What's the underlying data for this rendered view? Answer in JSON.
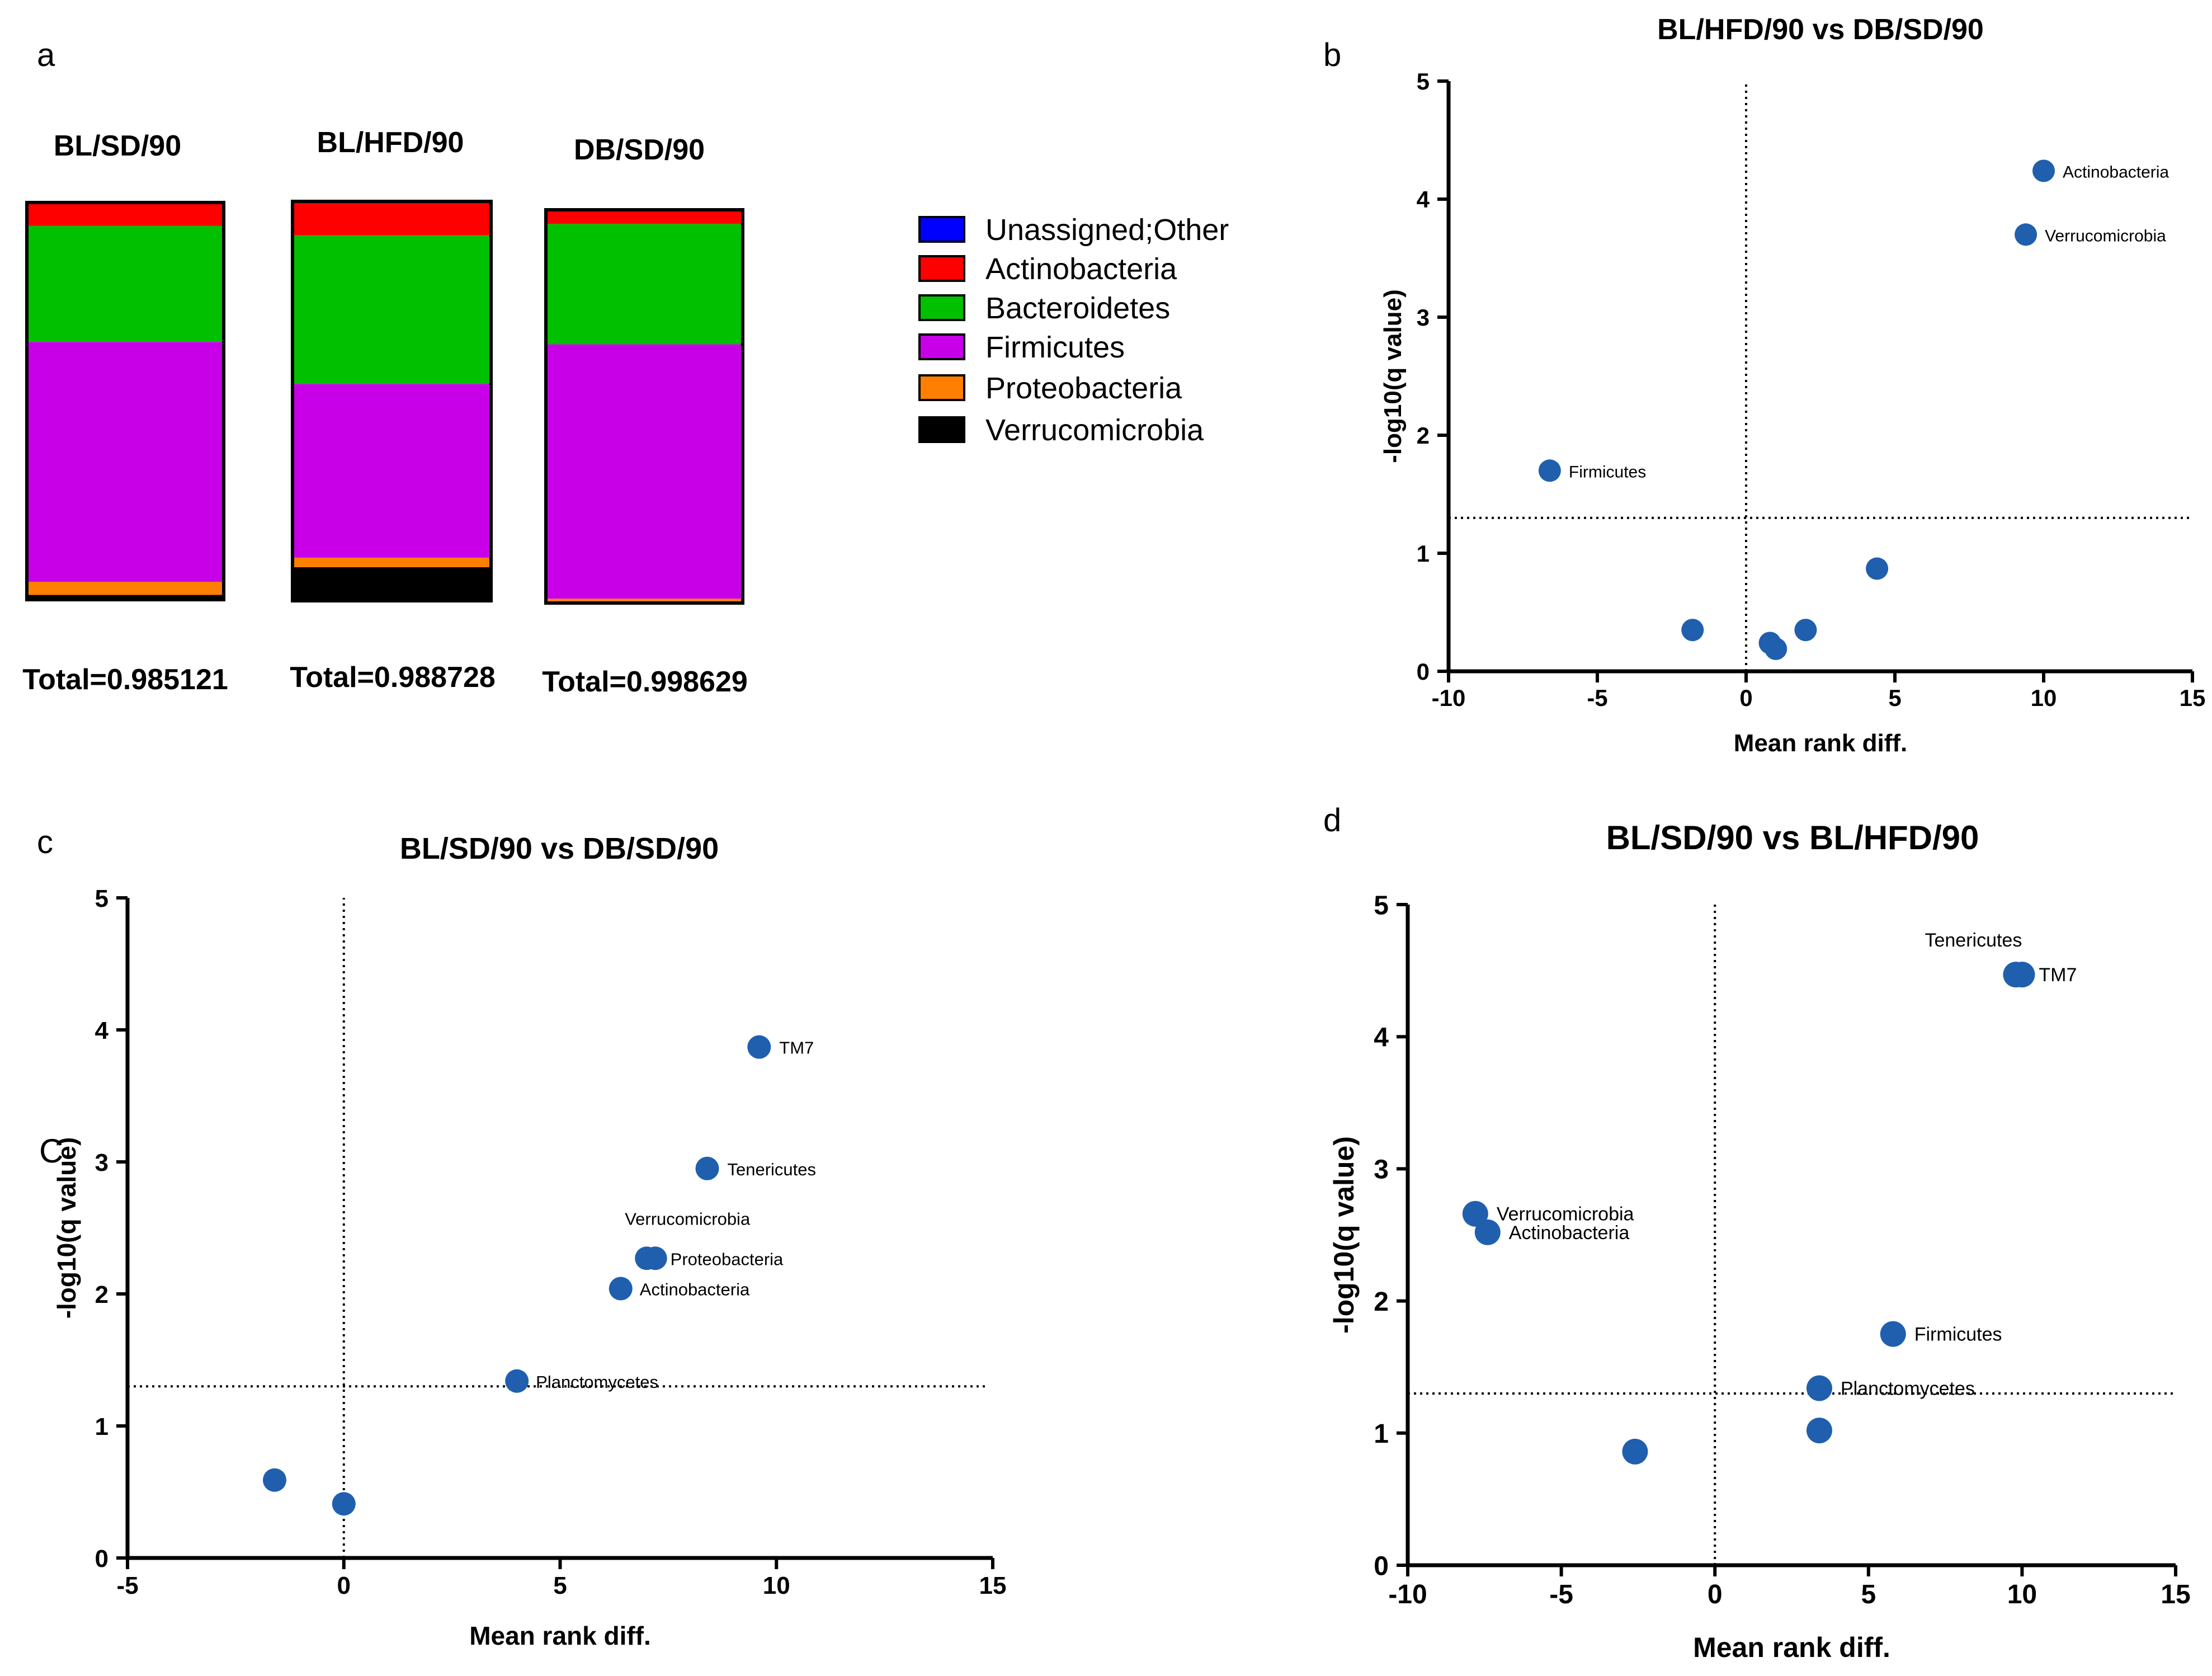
{
  "panel_letters": {
    "a": "a",
    "b": "b",
    "c": "c",
    "d": "d",
    "stray": "C"
  },
  "legend": [
    {
      "label": "Unassigned;Other",
      "color": "#0000ff"
    },
    {
      "label": "Actinobacteria",
      "color": "#ff0000"
    },
    {
      "label": "Bacteroidetes",
      "color": "#00c000"
    },
    {
      "label": "Firmicutes",
      "color": "#c800e8"
    },
    {
      "label": "Proteobacteria",
      "color": "#ff8000"
    },
    {
      "label": "Verrucomicrobia",
      "color": "#000000"
    }
  ],
  "chart_data": [
    {
      "type": "bar",
      "stacked": true,
      "normalized": true,
      "categories": [
        "BL/SD/90",
        "BL/HFD/90",
        "DB/SD/90"
      ],
      "totals": [
        "Total=0.985121",
        "Total=0.988728",
        "Total=0.998629"
      ],
      "stack_order": "bottom-to-top",
      "series": [
        {
          "name": "Verrucomicrobia",
          "color": "#000000",
          "values": [
            0.012,
            0.084,
            0.002
          ]
        },
        {
          "name": "Proteobacteria",
          "color": "#ff8000",
          "values": [
            0.033,
            0.024,
            0.009
          ]
        },
        {
          "name": "Firmicutes",
          "color": "#c800e8",
          "values": [
            0.604,
            0.435,
            0.647
          ]
        },
        {
          "name": "Bacteroidetes",
          "color": "#00c000",
          "values": [
            0.292,
            0.372,
            0.306
          ]
        },
        {
          "name": "Actinobacteria",
          "color": "#ff0000",
          "values": [
            0.059,
            0.085,
            0.036
          ]
        },
        {
          "name": "Unassigned;Other",
          "color": "#0000ff",
          "values": [
            0,
            0,
            0
          ]
        }
      ]
    },
    {
      "type": "scatter",
      "title": "BL/HFD/90 vs DB/SD/90",
      "xlabel": "Mean rank diff.",
      "ylabel": "-log10(q value)",
      "xlim": [
        -10,
        15
      ],
      "ylim": [
        0,
        5
      ],
      "xticks": [
        -10,
        -5,
        0,
        5,
        10,
        15
      ],
      "yticks": [
        0,
        1,
        2,
        3,
        4,
        5
      ],
      "xtick_labels": [
        "-10",
        "-5",
        "0",
        "5",
        "10",
        "15"
      ],
      "ytick_labels": [
        "0",
        "1",
        "2",
        "3",
        "4",
        "5"
      ],
      "threshold_y": 1.3,
      "threshold_x": 0,
      "points": [
        {
          "x": 10.0,
          "y": 4.24,
          "label": "Actinobacteria"
        },
        {
          "x": 9.4,
          "y": 3.7,
          "label": "Verrucomicrobia"
        },
        {
          "x": -6.6,
          "y": 1.7,
          "label": "Firmicutes"
        },
        {
          "x": 4.4,
          "y": 0.87,
          "label": ""
        },
        {
          "x": -1.8,
          "y": 0.35,
          "label": ""
        },
        {
          "x": 2.0,
          "y": 0.35,
          "label": ""
        },
        {
          "x": 0.8,
          "y": 0.24,
          "label": ""
        },
        {
          "x": 1.0,
          "y": 0.19,
          "label": ""
        }
      ]
    },
    {
      "type": "scatter",
      "title": "BL/SD/90 vs DB/SD/90",
      "xlabel": "Mean rank diff.",
      "ylabel": "-log10(q value)",
      "xlim": [
        -5,
        15
      ],
      "ylim": [
        0,
        5
      ],
      "xticks": [
        -5,
        0,
        5,
        10,
        15
      ],
      "yticks": [
        0,
        1,
        2,
        3,
        4,
        5
      ],
      "xtick_labels": [
        "-5",
        "0",
        "5",
        "10",
        "15"
      ],
      "ytick_labels": [
        "0",
        "1",
        "2",
        "3",
        "4",
        "5"
      ],
      "threshold_y": 1.3,
      "threshold_x": 0,
      "points": [
        {
          "x": 9.6,
          "y": 3.87,
          "label": "TM7"
        },
        {
          "x": 8.4,
          "y": 2.95,
          "label": "Tenericutes"
        },
        {
          "x": 7.0,
          "y": 2.27,
          "label": "Verrucomicrobia"
        },
        {
          "x": 7.2,
          "y": 2.27,
          "label": "Proteobacteria"
        },
        {
          "x": 6.4,
          "y": 2.04,
          "label": "Actinobacteria"
        },
        {
          "x": 4.0,
          "y": 1.34,
          "label": "Planctomycetes"
        },
        {
          "x": -1.6,
          "y": 0.59,
          "label": ""
        },
        {
          "x": 0.0,
          "y": 0.41,
          "label": ""
        }
      ]
    },
    {
      "type": "scatter",
      "title": "BL/SD/90 vs BL/HFD/90",
      "xlabel": "Mean rank diff.",
      "ylabel": "-log10(q value)",
      "xlim": [
        -10,
        15
      ],
      "ylim": [
        0,
        5
      ],
      "xticks": [
        -10,
        -5,
        0,
        5,
        10,
        15
      ],
      "yticks": [
        0,
        1,
        2,
        3,
        4,
        5
      ],
      "xtick_labels": [
        "-10",
        "-5",
        "0",
        "5",
        "10",
        "15"
      ],
      "ytick_labels": [
        "0",
        "1",
        "2",
        "3",
        "4",
        "5"
      ],
      "threshold_y": 1.3,
      "threshold_x": 0,
      "points": [
        {
          "x": 9.8,
          "y": 4.47,
          "label": "Tenericutes"
        },
        {
          "x": 10.0,
          "y": 4.47,
          "label": "TM7"
        },
        {
          "x": -7.8,
          "y": 2.66,
          "label": "Verrucomicrobia"
        },
        {
          "x": -7.4,
          "y": 2.52,
          "label": "Actinobacteria"
        },
        {
          "x": 5.8,
          "y": 1.75,
          "label": "Firmicutes"
        },
        {
          "x": 3.4,
          "y": 1.34,
          "label": "Planctomycetes"
        },
        {
          "x": 3.4,
          "y": 1.02,
          "label": ""
        },
        {
          "x": -2.6,
          "y": 0.86,
          "label": ""
        }
      ]
    }
  ]
}
